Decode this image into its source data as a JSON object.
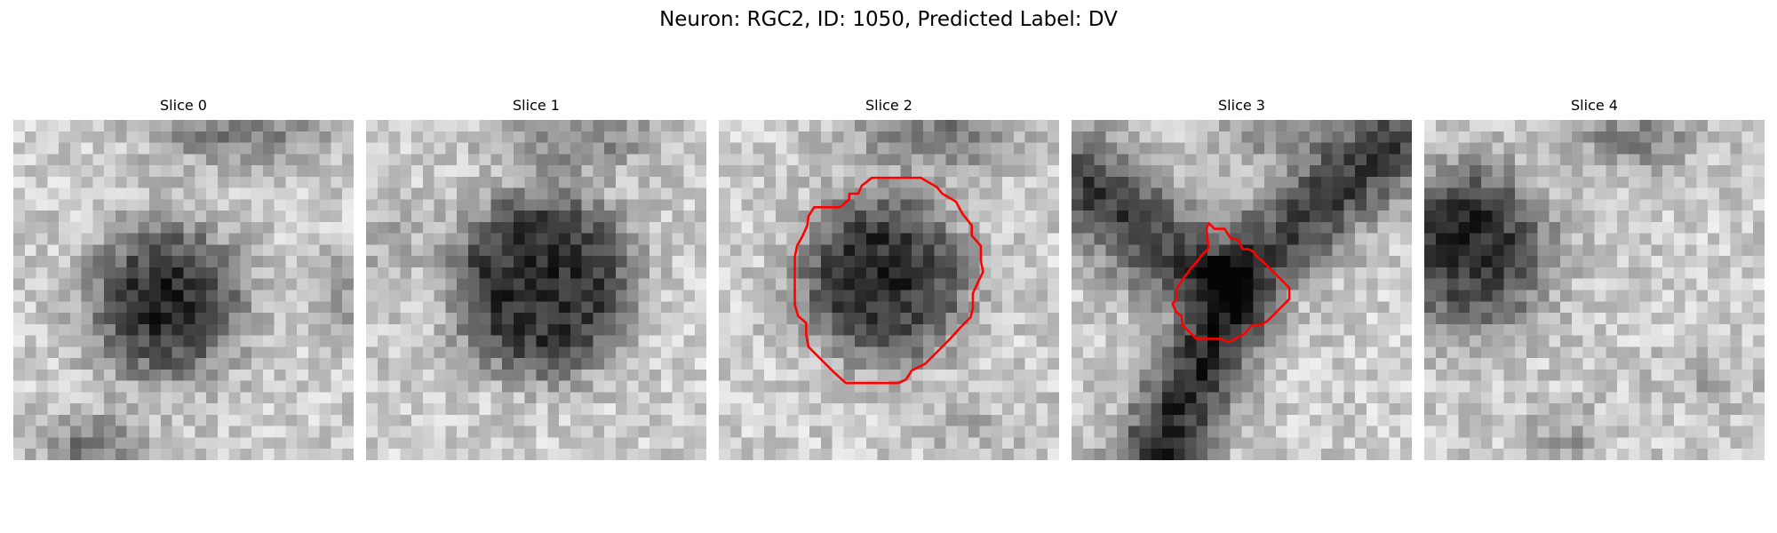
{
  "figure": {
    "title": "Neuron: RGC2, ID: 1050, Predicted Label: DV"
  },
  "panels": [
    {
      "title": "Slice 0",
      "has_contour": false
    },
    {
      "title": "Slice 1",
      "has_contour": false
    },
    {
      "title": "Slice 2",
      "has_contour": true
    },
    {
      "title": "Slice 3",
      "has_contour": true
    },
    {
      "title": "Slice 4",
      "has_contour": false
    }
  ],
  "colors": {
    "contour": "#ff0000",
    "background": "#ffffff"
  },
  "image": {
    "colormap": "grayscale"
  }
}
